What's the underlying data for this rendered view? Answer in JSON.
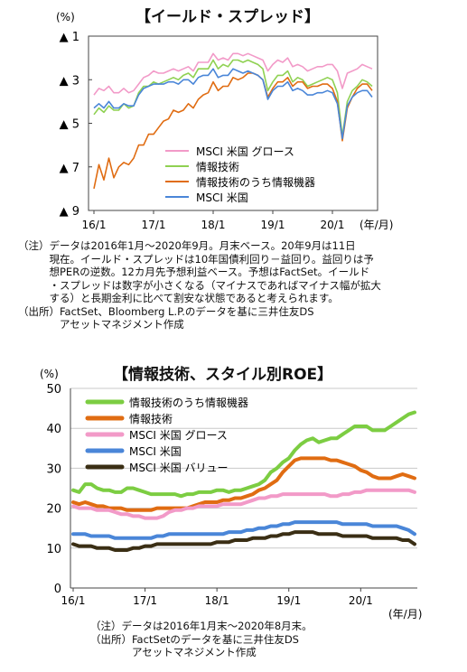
{
  "chart_data": [
    {
      "type": "line",
      "title": "【イールド・スプレッド】",
      "y_unit": "(%)",
      "y_ticks": [
        "▲ 1",
        "▲ 3",
        "▲ 5",
        "▲ 7",
        "▲ 9"
      ],
      "y_tick_values": [
        -1,
        -3,
        -5,
        -7,
        -9
      ],
      "ylim": [
        -9,
        -1
      ],
      "x_ticks": [
        "16/1",
        "17/1",
        "18/1",
        "19/1",
        "20/1"
      ],
      "x_unit": "(年/月)",
      "x_range": [
        "2016-01",
        "2020-09"
      ],
      "grid": false,
      "legend_position": "lower-right",
      "series": [
        {
          "name": "MSCI 米国 グロース",
          "color": "#f29ac8",
          "values": [
            -3.7,
            -3.4,
            -3.5,
            -3.3,
            -3.6,
            -3.6,
            -3.4,
            -3.6,
            -3.5,
            -3.2,
            -2.9,
            -2.8,
            -2.6,
            -2.7,
            -2.7,
            -2.6,
            -2.5,
            -2.6,
            -2.5,
            -2.4,
            -2.6,
            -2.2,
            -2.2,
            -2.2,
            -1.8,
            -2.1,
            -2.0,
            -2.1,
            -1.8,
            -1.8,
            -1.9,
            -1.8,
            -1.9,
            -2.0,
            -2.1,
            -2.6,
            -2.3,
            -2.1,
            -2.2,
            -2.0,
            -2.4,
            -2.3,
            -2.4,
            -2.6,
            -2.5,
            -2.4,
            -2.4,
            -2.3,
            -2.3,
            -2.6,
            -3.4,
            -2.7,
            -2.6,
            -2.5,
            -2.3,
            -2.4,
            -2.5
          ]
        },
        {
          "name": "情報技術",
          "color": "#8fd152",
          "values": [
            -4.6,
            -4.3,
            -4.5,
            -4.2,
            -4.4,
            -4.4,
            -4.1,
            -4.3,
            -4.2,
            -3.6,
            -3.3,
            -3.3,
            -3.1,
            -3.2,
            -3.1,
            -3.0,
            -2.9,
            -3.0,
            -2.8,
            -2.7,
            -2.9,
            -2.5,
            -2.5,
            -2.5,
            -2.1,
            -2.5,
            -2.3,
            -2.4,
            -2.1,
            -2.1,
            -2.2,
            -2.1,
            -2.2,
            -2.3,
            -2.5,
            -3.5,
            -3.1,
            -2.8,
            -2.8,
            -2.6,
            -3.1,
            -2.9,
            -3.0,
            -3.3,
            -3.2,
            -3.1,
            -3.0,
            -2.9,
            -3.0,
            -3.6,
            -5.6,
            -4.0,
            -3.5,
            -3.3,
            -3.0,
            -3.1,
            -3.3
          ]
        },
        {
          "name": "情報技術のうち情報機器",
          "color": "#e06c12",
          "values": [
            -8.0,
            -6.9,
            -7.6,
            -6.6,
            -7.5,
            -7.0,
            -6.8,
            -6.9,
            -6.6,
            -6.0,
            -6.0,
            -5.5,
            -5.5,
            -5.2,
            -4.9,
            -4.8,
            -4.4,
            -4.5,
            -4.4,
            -4.1,
            -4.3,
            -3.9,
            -3.7,
            -3.6,
            -3.1,
            -3.5,
            -3.3,
            -3.3,
            -2.9,
            -3.0,
            -2.9,
            -2.7,
            -2.7,
            -2.8,
            -3.0,
            -3.8,
            -3.4,
            -3.1,
            -3.1,
            -2.9,
            -3.3,
            -3.1,
            -3.1,
            -3.4,
            -3.3,
            -3.3,
            -3.2,
            -3.2,
            -3.4,
            -4.0,
            -5.8,
            -4.3,
            -3.8,
            -3.4,
            -3.2,
            -3.2,
            -3.5
          ]
        },
        {
          "name": "MSCI 米国",
          "color": "#4a86d8",
          "values": [
            -4.3,
            -4.1,
            -4.3,
            -4.0,
            -4.3,
            -4.3,
            -4.1,
            -4.2,
            -4.2,
            -3.7,
            -3.4,
            -3.3,
            -3.2,
            -3.2,
            -3.2,
            -3.1,
            -3.1,
            -3.2,
            -3.0,
            -3.0,
            -3.2,
            -2.9,
            -2.8,
            -2.8,
            -2.5,
            -2.9,
            -2.8,
            -2.8,
            -2.5,
            -2.6,
            -2.7,
            -2.6,
            -2.7,
            -2.8,
            -3.0,
            -3.9,
            -3.5,
            -3.3,
            -3.3,
            -3.1,
            -3.5,
            -3.4,
            -3.5,
            -3.7,
            -3.7,
            -3.6,
            -3.6,
            -3.5,
            -3.6,
            -4.1,
            -5.7,
            -4.2,
            -3.8,
            -3.6,
            -3.5,
            -3.5,
            -3.8
          ]
        }
      ]
    },
    {
      "type": "line",
      "title": "【情報技術、スタイル別ROE】",
      "y_unit": "(%)",
      "y_ticks": [
        "0",
        "10",
        "20",
        "30",
        "40",
        "50"
      ],
      "y_tick_values": [
        0,
        10,
        20,
        30,
        40,
        50
      ],
      "ylim": [
        0,
        50
      ],
      "x_ticks": [
        "16/1",
        "17/1",
        "18/1",
        "19/1",
        "20/1"
      ],
      "x_unit": "(年/月)",
      "x_range": [
        "2016-01",
        "2020-08"
      ],
      "grid": true,
      "legend_position": "top-left",
      "series": [
        {
          "name": "情報技術のうち情報機器",
          "color": "#7ccd42",
          "values": [
            24.5,
            24.0,
            26.0,
            26.0,
            25.0,
            24.5,
            24.5,
            24.0,
            24.0,
            25.0,
            25.0,
            24.5,
            24.0,
            23.5,
            23.5,
            23.5,
            23.5,
            23.5,
            23.0,
            23.5,
            23.5,
            24.0,
            24.0,
            24.0,
            24.5,
            24.5,
            24.0,
            24.5,
            24.5,
            25.0,
            25.5,
            26.0,
            27.0,
            29.0,
            30.0,
            31.5,
            32.5,
            34.5,
            36.0,
            37.0,
            37.5,
            36.5,
            37.0,
            37.5,
            37.5,
            38.5,
            39.5,
            40.5,
            40.5,
            40.5,
            39.5,
            39.5,
            39.5,
            40.5,
            41.5,
            42.5,
            43.5,
            44.0
          ]
        },
        {
          "name": "情報技術",
          "color": "#e06c12",
          "values": [
            21.5,
            21.0,
            21.5,
            21.0,
            20.5,
            20.5,
            20.0,
            20.0,
            20.0,
            19.5,
            19.5,
            19.5,
            19.5,
            19.5,
            20.0,
            20.0,
            20.0,
            20.0,
            20.0,
            20.0,
            20.5,
            21.0,
            21.5,
            21.5,
            21.5,
            22.0,
            22.0,
            22.5,
            22.5,
            23.0,
            23.5,
            24.5,
            25.0,
            26.0,
            27.0,
            29.0,
            30.5,
            32.0,
            32.5,
            32.5,
            32.5,
            32.5,
            32.5,
            32.0,
            32.0,
            31.5,
            31.0,
            30.5,
            29.5,
            29.0,
            28.0,
            27.5,
            27.5,
            27.5,
            28.0,
            28.5,
            28.0,
            27.5
          ]
        },
        {
          "name": "MSCI 米国 グロース",
          "color": "#f29ac8",
          "values": [
            20.5,
            20.0,
            20.0,
            20.0,
            19.5,
            19.5,
            19.5,
            19.0,
            18.5,
            18.5,
            18.0,
            18.0,
            17.5,
            17.5,
            17.5,
            18.0,
            19.0,
            19.5,
            19.5,
            20.0,
            20.0,
            20.5,
            20.5,
            20.5,
            20.5,
            21.0,
            21.0,
            21.0,
            21.0,
            21.5,
            22.0,
            22.5,
            22.5,
            23.0,
            23.0,
            23.5,
            23.5,
            23.5,
            23.5,
            23.5,
            23.5,
            23.5,
            23.5,
            23.0,
            23.0,
            23.5,
            23.5,
            24.0,
            24.0,
            24.5,
            24.5,
            24.5,
            24.5,
            24.5,
            24.5,
            24.5,
            24.5,
            24.0
          ]
        },
        {
          "name": "MSCI 米国",
          "color": "#4a86d8",
          "values": [
            13.5,
            13.5,
            13.5,
            13.0,
            13.0,
            13.0,
            13.0,
            12.5,
            12.5,
            12.5,
            12.5,
            12.5,
            12.5,
            12.5,
            13.0,
            13.0,
            13.5,
            13.5,
            13.5,
            13.5,
            13.5,
            13.5,
            13.5,
            13.5,
            13.5,
            13.5,
            14.0,
            14.0,
            14.0,
            14.5,
            14.5,
            15.0,
            15.0,
            15.5,
            15.5,
            16.0,
            16.0,
            16.5,
            16.5,
            16.5,
            16.5,
            16.5,
            16.5,
            16.5,
            16.5,
            16.0,
            16.0,
            16.0,
            16.0,
            16.0,
            15.5,
            15.5,
            15.5,
            15.5,
            15.5,
            15.0,
            14.5,
            13.5
          ]
        },
        {
          "name": "MSCI 米国 バリュー",
          "color": "#3a2e14",
          "values": [
            11.0,
            10.5,
            10.5,
            10.5,
            10.0,
            10.0,
            10.0,
            9.5,
            9.5,
            9.5,
            10.0,
            10.0,
            10.5,
            10.5,
            11.0,
            11.0,
            11.0,
            11.0,
            11.0,
            11.0,
            11.0,
            11.0,
            11.0,
            11.0,
            11.5,
            11.5,
            11.5,
            12.0,
            12.0,
            12.0,
            12.5,
            12.5,
            12.5,
            13.0,
            13.0,
            13.5,
            13.5,
            14.0,
            14.0,
            14.0,
            14.0,
            13.5,
            13.5,
            13.5,
            13.5,
            13.0,
            13.0,
            13.0,
            13.0,
            13.0,
            12.5,
            12.5,
            12.5,
            12.5,
            12.5,
            12.0,
            12.0,
            11.0
          ]
        }
      ]
    }
  ],
  "notes1": [
    "（注）データは2016年1月～2020年9月。月末ベース。20年9月は11日",
    "　　　現在。イールド・スプレッドは10年国債利回り－益回り。益回りは予",
    "　　　想PERの逆数。12カ月先予想利益ベース。予想はFactSet。イールド",
    "　　　・スプレッドは数字が小さくなる（マイナスであればマイナス幅が拡大",
    "　　　する）と長期金利に比べて割安な状態であると考えられます。",
    "（出所）FactSet、Bloomberg L.P.のデータを基に三井住友DS",
    "　　　　アセットマネジメント作成"
  ],
  "notes2": [
    "（注）データは2016年1月末～2020年8月末。",
    "（出所）FactSetのデータを基に三井住友DS",
    "　　　　アセットマネジメント作成"
  ]
}
